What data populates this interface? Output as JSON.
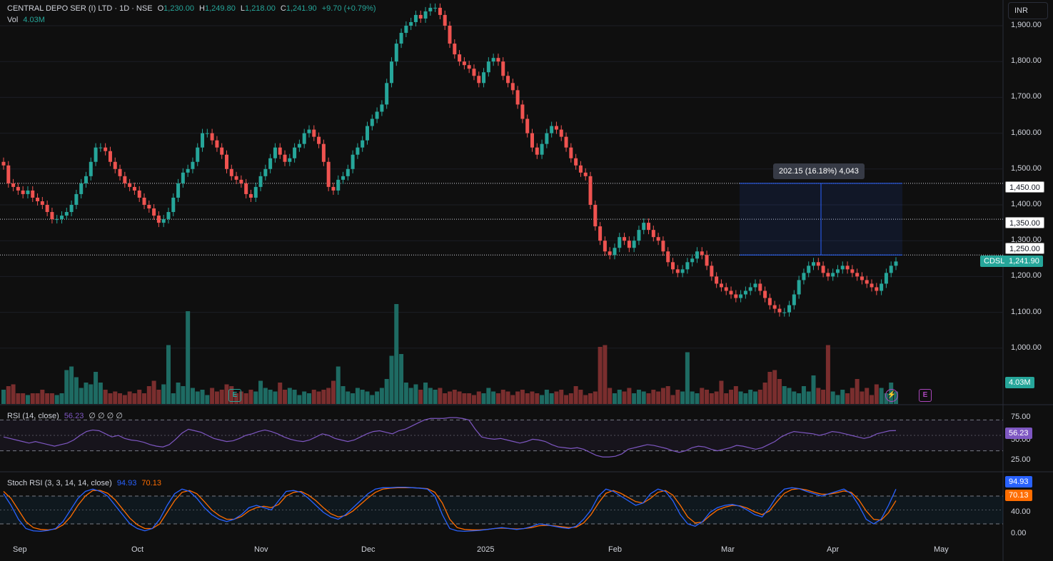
{
  "header": {
    "symbol": "CENTRAL DEPO SER (I) LTD · 1D · NSE",
    "o_label": "O",
    "o_val": "1,230.00",
    "h_label": "H",
    "h_val": "1,249.80",
    "l_label": "L",
    "l_val": "1,218.00",
    "c_label": "C",
    "c_val": "1,241.90",
    "change": "+9.70 (+0.79%)",
    "vol_label": "Vol",
    "vol_val": "4.03M"
  },
  "currency_button": "INR",
  "price_axis": [
    "1,900.00",
    "1,800.00",
    "1,700.00",
    "1,600.00",
    "1,500.00",
    "1,400.00",
    "1,300.00",
    "1,200.00",
    "1,100.00",
    "1,000.00"
  ],
  "price_axis_values": [
    1900,
    1800,
    1700,
    1600,
    1500,
    1400,
    1300,
    1200,
    1100,
    1000
  ],
  "price_tags": {
    "level_1450": "1,450.00",
    "level_1350": "1,350.00",
    "level_1250": "1,250.00",
    "symbol_tag": "CDSL",
    "last_price": "1,241.90",
    "volume": "4.03M"
  },
  "measure_label": "202.15 (16.18%) 4,043",
  "rsi": {
    "title": "RSI (14, close)",
    "value": "56.23",
    "extras": "∅ ∅ ∅ ∅",
    "axis": [
      "75.00",
      "50.00",
      "25.00"
    ],
    "tag": "56.23"
  },
  "stoch": {
    "title": "Stoch RSI (3, 3, 14, 14, close)",
    "k_val": "94.93",
    "d_val": "70.13",
    "axis": [
      "40.00",
      "0.00"
    ],
    "tag_k": "94.93",
    "tag_d": "70.13"
  },
  "time_axis": [
    "Sep",
    "Oct",
    "Nov",
    "Dec",
    "2025",
    "Feb",
    "Mar",
    "Apr",
    "May"
  ],
  "colors": {
    "up": "#26a69a",
    "down": "#ef5350",
    "vol_up": "#1e6b63",
    "vol_down": "#7a2e2e",
    "rsi": "#7e57c2",
    "stoch_k": "#2962ff",
    "stoch_d": "#ff6d00",
    "bg": "#0f0f0f",
    "grid": "#1c1f26"
  },
  "icons": {
    "earnings": "E",
    "dividend": "⚡"
  },
  "chart_data": {
    "type": "candlestick",
    "last": 1241.9,
    "ylim": [
      950,
      1950
    ],
    "closes": [
      1510,
      1460,
      1450,
      1440,
      1430,
      1440,
      1420,
      1410,
      1400,
      1380,
      1360,
      1360,
      1370,
      1380,
      1400,
      1430,
      1460,
      1480,
      1520,
      1560,
      1560,
      1550,
      1520,
      1500,
      1480,
      1460,
      1450,
      1440,
      1420,
      1400,
      1390,
      1370,
      1350,
      1360,
      1380,
      1420,
      1460,
      1490,
      1500,
      1520,
      1560,
      1600,
      1600,
      1580,
      1560,
      1540,
      1500,
      1480,
      1470,
      1460,
      1430,
      1420,
      1450,
      1480,
      1500,
      1530,
      1560,
      1540,
      1520,
      1530,
      1560,
      1570,
      1600,
      1610,
      1590,
      1570,
      1520,
      1450,
      1440,
      1470,
      1480,
      1500,
      1540,
      1560,
      1580,
      1620,
      1640,
      1660,
      1680,
      1740,
      1800,
      1850,
      1880,
      1900,
      1910,
      1930,
      1920,
      1940,
      1950,
      1950,
      1930,
      1900,
      1850,
      1820,
      1800,
      1790,
      1780,
      1760,
      1740,
      1770,
      1800,
      1810,
      1800,
      1760,
      1740,
      1720,
      1680,
      1640,
      1600,
      1560,
      1540,
      1570,
      1600,
      1620,
      1610,
      1590,
      1560,
      1530,
      1510,
      1490,
      1480,
      1400,
      1340,
      1300,
      1270,
      1260,
      1280,
      1310,
      1300,
      1280,
      1300,
      1330,
      1350,
      1330,
      1310,
      1300,
      1270,
      1240,
      1220,
      1210,
      1220,
      1240,
      1250,
      1270,
      1260,
      1230,
      1200,
      1180,
      1170,
      1160,
      1150,
      1140,
      1150,
      1160,
      1170,
      1180,
      1160,
      1140,
      1120,
      1110,
      1100,
      1100,
      1120,
      1150,
      1190,
      1210,
      1230,
      1240,
      1230,
      1210,
      1200,
      1210,
      1220,
      1230,
      1220,
      1210,
      1200,
      1190,
      1180,
      1170,
      1160,
      1180,
      1210,
      1230,
      1241.9
    ],
    "vols": [
      0.8,
      1.0,
      1.1,
      0.6,
      0.6,
      0.5,
      0.6,
      0.6,
      0.8,
      0.6,
      0.6,
      0.5,
      0.6,
      1.9,
      2.1,
      1.5,
      0.9,
      1.2,
      1.1,
      1.8,
      1.2,
      0.8,
      0.6,
      0.7,
      0.6,
      0.5,
      0.7,
      0.6,
      0.8,
      0.6,
      1.0,
      1.3,
      0.8,
      1.1,
      3.3,
      0.6,
      1.2,
      1.0,
      5.2,
      0.9,
      0.7,
      0.8,
      0.5,
      0.9,
      0.7,
      0.8,
      1.1,
      1.0,
      0.6,
      0.7,
      0.6,
      0.8,
      0.7,
      1.3,
      0.9,
      0.8,
      0.7,
      1.2,
      0.8,
      0.9,
      0.8,
      0.5,
      0.7,
      0.6,
      0.8,
      0.7,
      0.8,
      0.9,
      1.3,
      2.1,
      1.0,
      0.7,
      0.6,
      0.9,
      0.8,
      0.7,
      0.5,
      0.7,
      0.9,
      1.4,
      2.7,
      5.6,
      2.8,
      1.2,
      0.9,
      1.1,
      0.8,
      1.2,
      0.9,
      0.8,
      0.9,
      0.6,
      0.7,
      0.8,
      0.7,
      0.6,
      0.6,
      0.5,
      0.7,
      0.6,
      0.9,
      0.7,
      0.6,
      0.8,
      0.7,
      0.5,
      0.7,
      0.8,
      0.6,
      0.7,
      0.6,
      0.5,
      0.8,
      0.6,
      0.7,
      0.8,
      0.5,
      0.6,
      1.0,
      0.8,
      0.5,
      0.6,
      0.7,
      3.2,
      3.3,
      0.9,
      0.6,
      0.8,
      0.7,
      0.9,
      0.6,
      0.8,
      0.7,
      0.6,
      0.8,
      0.7,
      0.9,
      1.0,
      0.5,
      0.8,
      0.7,
      2.9,
      0.7,
      0.6,
      0.9,
      0.8,
      0.6,
      0.7,
      1.3,
      0.6,
      0.8,
      1.0,
      0.7,
      0.6,
      0.8,
      0.7,
      0.8,
      1.2,
      1.8,
      1.9,
      1.4,
      1.0,
      0.9,
      0.7,
      0.6,
      1.0,
      0.7,
      1.6,
      0.9,
      0.8,
      3.3,
      0.7,
      0.5,
      0.8,
      0.6,
      0.9,
      1.4,
      0.7,
      0.9,
      0.5,
      1.1,
      0.9,
      0.6,
      1.2,
      0.7,
      0.8,
      0.7,
      0.6,
      0.5,
      0.6,
      0.4
    ],
    "rsi_values": [
      48,
      46,
      44,
      42,
      40,
      42,
      40,
      38,
      36,
      38,
      40,
      44,
      50,
      55,
      57,
      56,
      52,
      48,
      50,
      46,
      44,
      43,
      41,
      38,
      36,
      35,
      38,
      45,
      53,
      58,
      56,
      54,
      50,
      46,
      44,
      42,
      43,
      46,
      50,
      52,
      55,
      57,
      55,
      52,
      48,
      45,
      43,
      42,
      44,
      48,
      52,
      50,
      46,
      44,
      42,
      44,
      48,
      52,
      55,
      56,
      54,
      52,
      56,
      58,
      62,
      66,
      70,
      72,
      72,
      72,
      73,
      73,
      72,
      70,
      58,
      48,
      46,
      45,
      46,
      44,
      42,
      40,
      42,
      45,
      44,
      42,
      38,
      35,
      34,
      33,
      34,
      32,
      28,
      24,
      22,
      22,
      23,
      26,
      32,
      34,
      36,
      38,
      37,
      35,
      33,
      30,
      28,
      30,
      34,
      36,
      35,
      32,
      30,
      32,
      34,
      37,
      36,
      34,
      32,
      34,
      38,
      42,
      48,
      52,
      55,
      54,
      53,
      52,
      50,
      52,
      55,
      54,
      52,
      50,
      48,
      46,
      48,
      52,
      54,
      56,
      56.23
    ],
    "stoch_k": [
      85,
      60,
      30,
      10,
      5,
      4,
      6,
      10,
      25,
      50,
      75,
      90,
      95,
      90,
      80,
      60,
      40,
      20,
      10,
      5,
      10,
      30,
      60,
      85,
      95,
      90,
      75,
      55,
      40,
      30,
      25,
      30,
      40,
      55,
      60,
      55,
      50,
      70,
      90,
      92,
      88,
      75,
      60,
      45,
      35,
      30,
      40,
      55,
      70,
      85,
      95,
      98,
      98,
      99,
      99,
      98,
      97,
      95,
      80,
      40,
      10,
      5,
      4,
      5,
      6,
      8,
      10,
      12,
      10,
      8,
      10,
      14,
      20,
      18,
      15,
      12,
      10,
      15,
      30,
      50,
      80,
      95,
      90,
      80,
      70,
      60,
      65,
      85,
      95,
      90,
      70,
      40,
      20,
      15,
      25,
      45,
      55,
      60,
      62,
      58,
      50,
      40,
      35,
      55,
      80,
      95,
      98,
      96,
      90,
      85,
      80,
      85,
      90,
      95,
      85,
      60,
      30,
      20,
      30,
      60,
      94.93
    ],
    "stoch_d": [
      90,
      75,
      50,
      25,
      12,
      8,
      7,
      9,
      18,
      35,
      60,
      80,
      92,
      92,
      86,
      72,
      52,
      32,
      18,
      10,
      10,
      20,
      45,
      70,
      88,
      92,
      85,
      68,
      50,
      38,
      30,
      30,
      36,
      48,
      55,
      58,
      55,
      62,
      80,
      88,
      90,
      82,
      70,
      55,
      42,
      35,
      38,
      48,
      62,
      76,
      88,
      95,
      97,
      98,
      98,
      98,
      97,
      96,
      88,
      65,
      30,
      12,
      8,
      7,
      7,
      8,
      10,
      11,
      10,
      9,
      10,
      12,
      16,
      17,
      16,
      14,
      12,
      13,
      22,
      40,
      65,
      86,
      92,
      86,
      77,
      68,
      65,
      75,
      88,
      92,
      82,
      60,
      35,
      22,
      24,
      38,
      50,
      56,
      60,
      59,
      54,
      46,
      40,
      48,
      68,
      86,
      94,
      96,
      93,
      88,
      84,
      84,
      87,
      91,
      88,
      72,
      48,
      30,
      28,
      44,
      70.13
    ]
  }
}
